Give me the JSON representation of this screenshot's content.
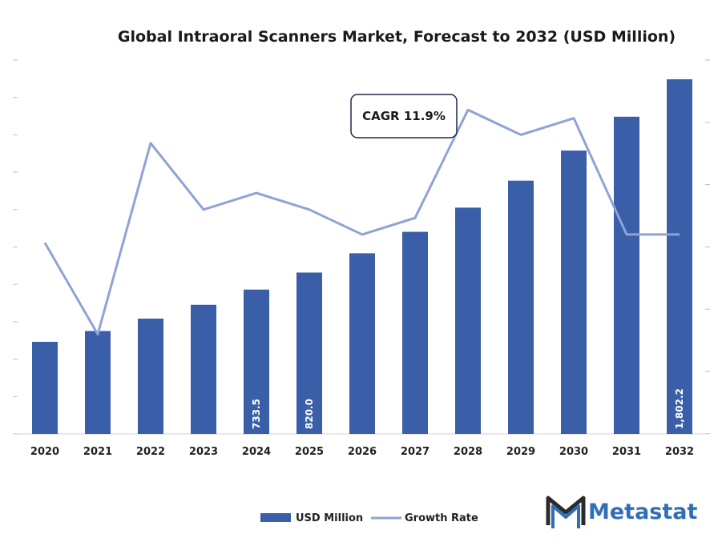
{
  "chart_data": {
    "type": "bar",
    "title": "Global Intraoral Scanners Market, Forecast to 2032 (USD Million)",
    "xlabel": "",
    "ylabel": "",
    "categories": [
      "2020",
      "2021",
      "2022",
      "2023",
      "2024",
      "2025",
      "2026",
      "2027",
      "2028",
      "2029",
      "2030",
      "2031",
      "2032"
    ],
    "series": [
      {
        "name": "USD Million",
        "type": "bar",
        "axis": "left",
        "color": "#3b5ea8",
        "values": [
          468,
          523,
          586,
          656,
          733.5,
          820.0,
          918,
          1027,
          1150,
          1287,
          1440,
          1612,
          1802.2
        ],
        "data_labels": [
          "",
          "",
          "",
          "",
          "733.5",
          "820.0",
          "",
          "",
          "",
          "",
          "",
          "",
          "1,802.2"
        ]
      },
      {
        "name": "Growth Rate",
        "type": "line",
        "axis": "right",
        "color": "#8fa3d6",
        "values": [
          10.8,
          9.7,
          12.0,
          11.2,
          11.4,
          11.2,
          10.9,
          11.1,
          12.4,
          12.1,
          12.3,
          10.9,
          10.9
        ]
      }
    ],
    "ylim_left": [
      0,
      1900
    ],
    "ylim_right": [
      8.5,
      13.0
    ],
    "grid": false,
    "legend": "bottom-center",
    "annotation": "CAGR 11.9%"
  },
  "brand": {
    "name": "Metastat",
    "logo": "metastat-m-logo",
    "color": "#2f6fb6",
    "dark": "#2b2b2b"
  }
}
